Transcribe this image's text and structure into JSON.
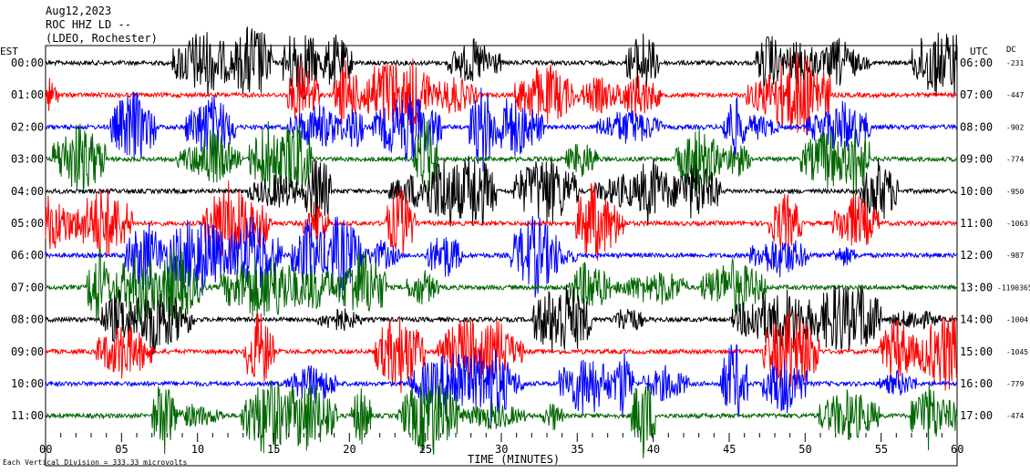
{
  "header": {
    "date": "Aug12,2023",
    "station": "ROC HHZ LD --",
    "network": "(LDEO, Rochester)"
  },
  "labels": {
    "left_tz": "EST",
    "right_tz": "UTC",
    "dc_header": "DC",
    "x_title": "TIME (MINUTES)",
    "scale_note": "Each Vertical Division = 333.33 microvolts"
  },
  "colors": {
    "black": "#000000",
    "red": "#ff0000",
    "blue": "#0000ff",
    "green": "#006600"
  },
  "chart_data": {
    "type": "line",
    "title": "ROC HHZ LD --",
    "xlabel": "TIME (MINUTES)",
    "xlim": [
      0,
      60
    ],
    "x_ticks": [
      "00",
      "05",
      "10",
      "15",
      "20",
      "25",
      "30",
      "35",
      "40",
      "45",
      "50",
      "55",
      "60"
    ],
    "series": [
      {
        "left_label": "00:00",
        "right_label": "06:00",
        "dc": "-231",
        "color": "black"
      },
      {
        "left_label": "01:00",
        "right_label": "07:00",
        "dc": "-447",
        "color": "red"
      },
      {
        "left_label": "02:00",
        "right_label": "08:00",
        "dc": "-902",
        "color": "blue"
      },
      {
        "left_label": "03:00",
        "right_label": "09:00",
        "dc": "-774",
        "color": "green"
      },
      {
        "left_label": "04:00",
        "right_label": "10:00",
        "dc": "-950",
        "color": "black"
      },
      {
        "left_label": "05:00",
        "right_label": "11:00",
        "dc": "-1063",
        "color": "red"
      },
      {
        "left_label": "06:00",
        "right_label": "12:00",
        "dc": "-987",
        "color": "blue"
      },
      {
        "left_label": "07:00",
        "right_label": "13:00",
        "dc": "-1190365",
        "color": "green"
      },
      {
        "left_label": "08:00",
        "right_label": "14:00",
        "dc": "-1004",
        "color": "black"
      },
      {
        "left_label": "09:00",
        "right_label": "15:00",
        "dc": "-1045",
        "color": "red"
      },
      {
        "left_label": "10:00",
        "right_label": "16:00",
        "dc": "-779",
        "color": "blue"
      },
      {
        "left_label": "11:00",
        "right_label": "17:00",
        "dc": "-474",
        "color": "green"
      }
    ]
  }
}
